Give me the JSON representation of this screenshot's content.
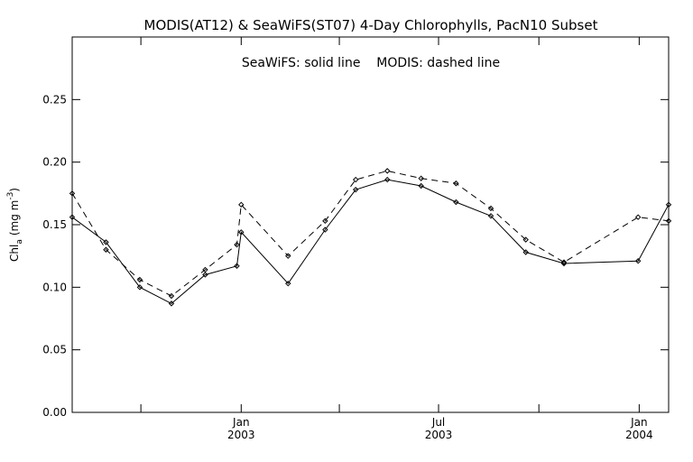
{
  "chart_data": {
    "type": "line",
    "title": "MODIS(AT12) & SeaWiFS(ST07) 4-Day Chlorophylls, PacN10 Subset",
    "annotation": "SeaWiFS: solid line    MODIS: dashed line",
    "ylabel": {
      "base": "Chl",
      "sub": "a",
      "units_open": "(mg m",
      "sup": "-3",
      "units_close": ")"
    },
    "xlim": [
      "2002-07-30",
      "2004-01-28"
    ],
    "ylim": [
      0,
      0.3
    ],
    "y_ticks": [
      "0.00",
      "0.05",
      "0.10",
      "0.15",
      "0.20",
      "0.25"
    ],
    "y_tick_values": [
      0,
      0.05,
      0.1,
      0.15,
      0.2,
      0.25
    ],
    "x_major_ticks": [
      {
        "date": "2003-01-01",
        "month": "Jan",
        "year": "2003"
      },
      {
        "date": "2003-07-01",
        "month": "Jul",
        "year": "2003"
      },
      {
        "date": "2004-01-01",
        "month": "Jan",
        "year": "2004"
      }
    ],
    "x_minor_ticks": [
      "2002-10-01",
      "2003-04-01",
      "2003-10-01"
    ],
    "series": [
      {
        "name": "SeaWiFS",
        "style": "solid",
        "color": "#000000",
        "x": [
          "2002-07-30",
          "2002-08-30",
          "2002-09-30",
          "2002-10-29",
          "2002-11-29",
          "2002-12-28",
          "2003-01-01",
          "2003-02-13",
          "2003-03-19",
          "2003-04-16",
          "2003-05-15",
          "2003-06-15",
          "2003-07-17",
          "2003-08-18",
          "2003-09-19",
          "2003-10-24",
          "2003-12-31",
          "2004-01-28"
        ],
        "y": [
          0.156,
          0.136,
          0.1,
          0.087,
          0.11,
          0.117,
          0.144,
          0.103,
          0.146,
          0.178,
          0.186,
          0.181,
          0.168,
          0.157,
          0.128,
          0.119,
          0.121,
          0.166
        ]
      },
      {
        "name": "MODIS",
        "style": "dashed",
        "color": "#000000",
        "x": [
          "2002-07-30",
          "2002-08-30",
          "2002-09-30",
          "2002-10-29",
          "2002-11-29",
          "2002-12-28",
          "2003-01-01",
          "2003-02-13",
          "2003-03-19",
          "2003-04-16",
          "2003-05-15",
          "2003-06-15",
          "2003-07-17",
          "2003-08-18",
          "2003-09-19",
          "2003-10-24",
          "2003-12-31",
          "2004-01-28"
        ],
        "y": [
          0.175,
          0.13,
          0.106,
          0.093,
          0.114,
          0.134,
          0.166,
          0.125,
          0.153,
          0.186,
          0.193,
          0.187,
          0.183,
          0.163,
          0.138,
          0.12,
          0.156,
          0.153
        ]
      }
    ]
  }
}
